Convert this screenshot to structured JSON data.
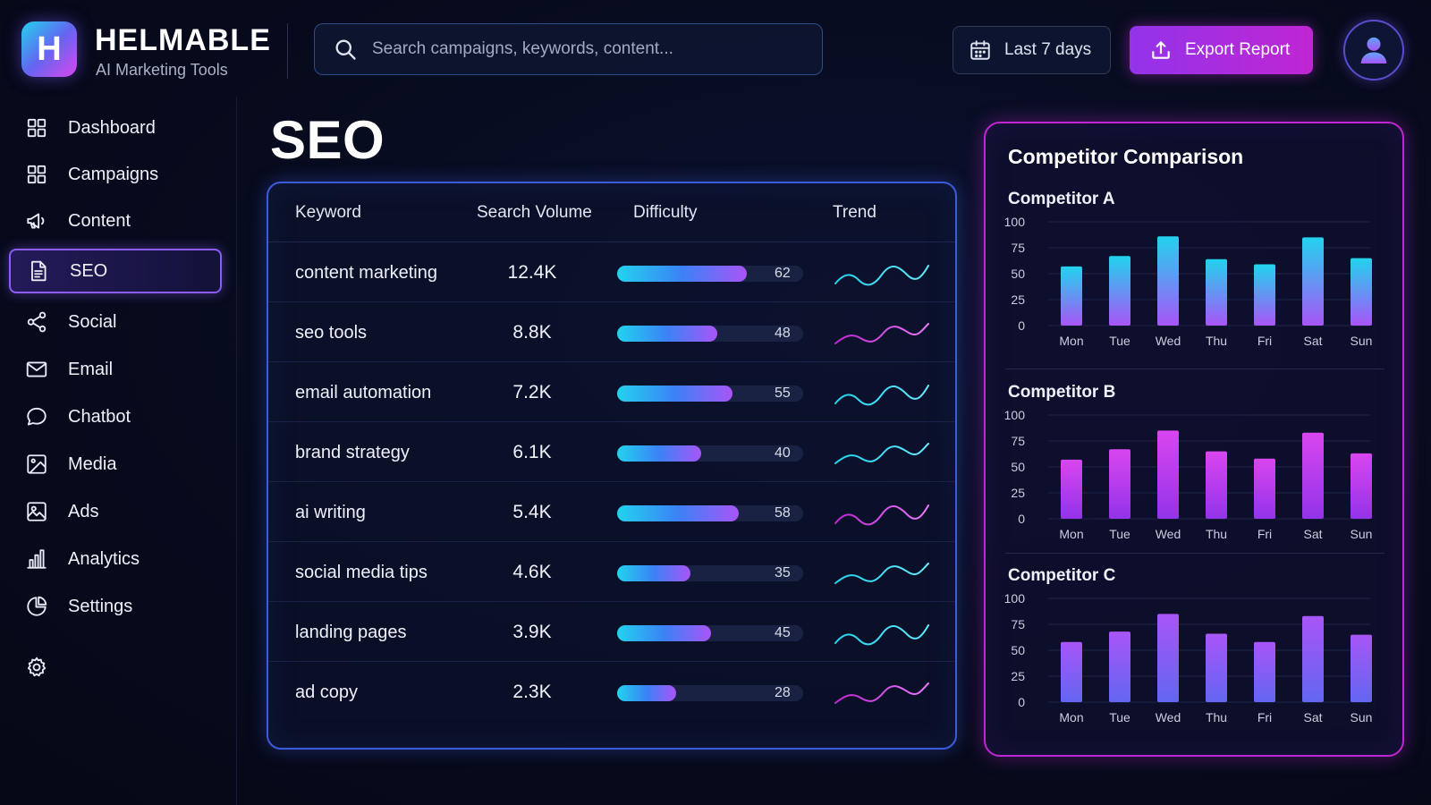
{
  "brand": {
    "logo_letter": "H",
    "name": "HELMABLE",
    "tagline": "AI Marketing Tools"
  },
  "search": {
    "placeholder": "Search campaigns, keywords, content..."
  },
  "header": {
    "date_range": "Last 7 days",
    "export_label": "Export Report"
  },
  "sidebar": {
    "items": [
      {
        "label": "Dashboard",
        "icon": "grid-icon"
      },
      {
        "label": "Campaigns",
        "icon": "grid-icon"
      },
      {
        "label": "Content",
        "icon": "megaphone-icon"
      },
      {
        "label": "SEO",
        "icon": "document-icon",
        "active": true
      },
      {
        "label": "Social",
        "icon": "share-icon"
      },
      {
        "label": "Email",
        "icon": "mail-icon"
      },
      {
        "label": "Chatbot",
        "icon": "chat-icon"
      },
      {
        "label": "Media",
        "icon": "media-icon"
      },
      {
        "label": "Ads",
        "icon": "image-icon"
      },
      {
        "label": "Analytics",
        "icon": "bar-chart-icon"
      },
      {
        "label": "Settings",
        "icon": "pie-chart-icon"
      }
    ],
    "bottom_icon": "gear-icon"
  },
  "page": {
    "title": "SEO"
  },
  "keywords": {
    "columns": [
      "Keyword",
      "Search Volume",
      "Difficulty",
      "Trend"
    ],
    "rows": [
      {
        "keyword": "content marketing",
        "volume": "12.4K",
        "difficulty": 62
      },
      {
        "keyword": "seo tools",
        "volume": "8.8K",
        "difficulty": 48
      },
      {
        "keyword": "email automation",
        "volume": "7.2K",
        "difficulty": 55
      },
      {
        "keyword": "brand strategy",
        "volume": "6.1K",
        "difficulty": 40
      },
      {
        "keyword": "ai writing",
        "volume": "5.4K",
        "difficulty": 58
      },
      {
        "keyword": "social media tips",
        "volume": "4.6K",
        "difficulty": 35
      },
      {
        "keyword": "landing pages",
        "volume": "3.9K",
        "difficulty": 45
      },
      {
        "keyword": "ad copy",
        "volume": "2.3K",
        "difficulty": 28
      }
    ]
  },
  "competitors": {
    "title": "Competitor Comparison",
    "colors": {
      "cyan": "#22d3ee",
      "blue": "#3b82f6",
      "purple": "#a855f7",
      "magenta": "#d946ef"
    }
  },
  "chart_data": [
    {
      "type": "bar",
      "title": "Competitor A",
      "categories": [
        "Mon",
        "Tue",
        "Wed",
        "Thu",
        "Fri",
        "Sat",
        "Sun"
      ],
      "values": [
        57,
        67,
        86,
        64,
        59,
        85,
        65
      ],
      "ylim": [
        0,
        100
      ],
      "yticks": [
        0,
        25,
        50,
        75,
        100
      ],
      "gradient": [
        "#22d3ee",
        "#a855f7"
      ]
    },
    {
      "type": "bar",
      "title": "Competitor B",
      "categories": [
        "Mon",
        "Tue",
        "Wed",
        "Thu",
        "Fri",
        "Sat",
        "Sun"
      ],
      "values": [
        57,
        67,
        85,
        65,
        58,
        83,
        63
      ],
      "ylim": [
        0,
        100
      ],
      "yticks": [
        0,
        25,
        50,
        75,
        100
      ],
      "gradient": [
        "#d946ef",
        "#9333ea"
      ]
    },
    {
      "type": "bar",
      "title": "Competitor C",
      "categories": [
        "Mon",
        "Tue",
        "Wed",
        "Thu",
        "Fri",
        "Sat",
        "Sun"
      ],
      "values": [
        58,
        68,
        85,
        66,
        58,
        83,
        65
      ],
      "ylim": [
        0,
        100
      ],
      "yticks": [
        0,
        25,
        50,
        75,
        100
      ],
      "gradient": [
        "#a855f7",
        "#6366f1"
      ]
    }
  ]
}
